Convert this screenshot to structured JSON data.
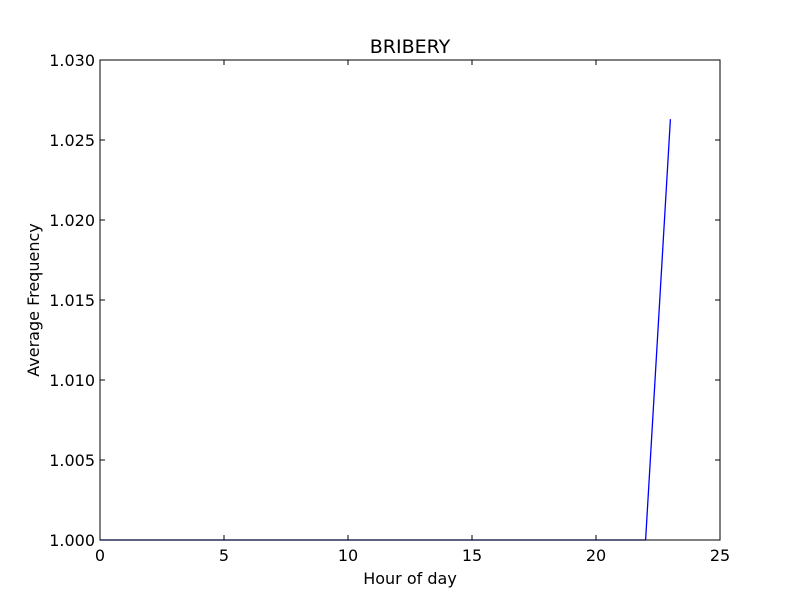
{
  "chart_data": {
    "type": "line",
    "title": "BRIBERY",
    "xlabel": "Hour of day",
    "ylabel": "Average Frequency",
    "xlim": [
      0,
      25
    ],
    "ylim": [
      1.0,
      1.03
    ],
    "xticks": [
      0,
      5,
      10,
      15,
      20,
      25
    ],
    "xtick_labels": [
      "0",
      "5",
      "10",
      "15",
      "20",
      "25"
    ],
    "yticks": [
      1.0,
      1.005,
      1.01,
      1.015,
      1.02,
      1.025,
      1.03
    ],
    "ytick_labels": [
      "1.000",
      "1.005",
      "1.010",
      "1.015",
      "1.020",
      "1.025",
      "1.030"
    ],
    "grid": false,
    "legend": "none",
    "series": [
      {
        "color": "#0000ff",
        "x": [
          0,
          1,
          2,
          3,
          4,
          5,
          6,
          7,
          8,
          9,
          10,
          11,
          12,
          13,
          14,
          15,
          16,
          17,
          18,
          19,
          20,
          21,
          22,
          23
        ],
        "y": [
          1.0,
          1.0,
          1.0,
          1.0,
          1.0,
          1.0,
          1.0,
          1.0,
          1.0,
          1.0,
          1.0,
          1.0,
          1.0,
          1.0,
          1.0,
          1.0,
          1.0,
          1.0,
          1.0,
          1.0,
          1.0,
          1.0,
          1.0,
          1.0263
        ]
      }
    ]
  }
}
